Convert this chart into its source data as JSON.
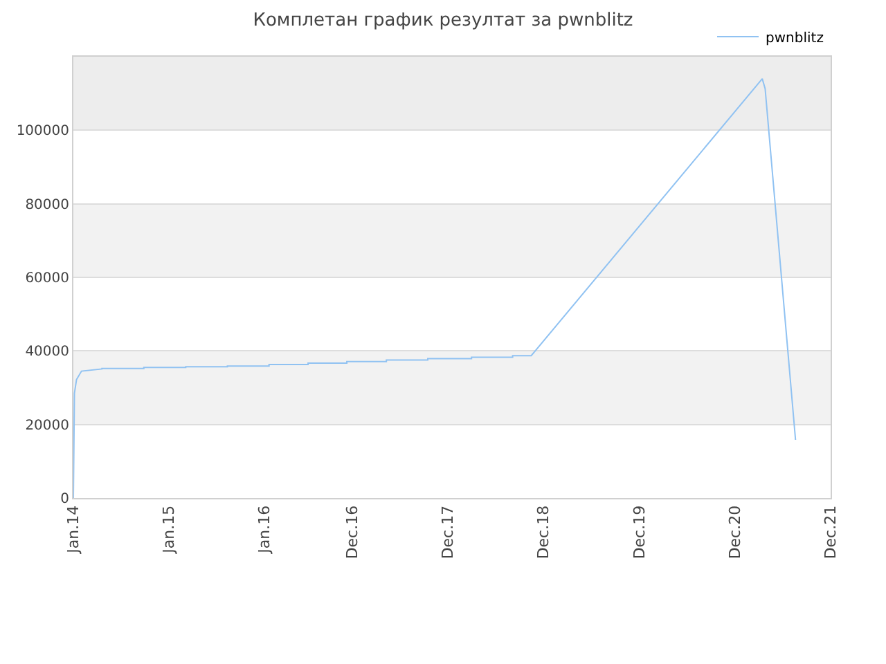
{
  "chart_data": {
    "type": "line",
    "title": "Комплетан график резултат за pwnblitz",
    "xlim": [
      "2014-01",
      "2021-12"
    ],
    "xticks": [
      {
        "value": "2014-01",
        "label": "Jan.14"
      },
      {
        "value": "2015-01",
        "label": "Jan.15"
      },
      {
        "value": "2016-01",
        "label": "Jan.16"
      },
      {
        "value": "2016-12",
        "label": "Dec.16"
      },
      {
        "value": "2017-12",
        "label": "Dec.17"
      },
      {
        "value": "2018-12",
        "label": "Dec.18"
      },
      {
        "value": "2019-12",
        "label": "Dec.19"
      },
      {
        "value": "2020-12",
        "label": "Dec.20"
      },
      {
        "value": "2021-12",
        "label": "Dec.21"
      }
    ],
    "ylim": [
      0,
      120000
    ],
    "yticks": [
      0,
      20000,
      40000,
      60000,
      80000,
      100000
    ],
    "grid": "y",
    "legend": "top right",
    "marker": "none",
    "line_style": "solid",
    "bands": [
      {
        "axis": "y",
        "from": 20000,
        "to": 40000,
        "color": "#f2f2f2"
      },
      {
        "axis": "y",
        "from": 60000,
        "to": 80000,
        "color": "#f2f2f2"
      },
      {
        "axis": "y",
        "from": 100000,
        "to": 120000,
        "color": "#ededed"
      }
    ],
    "series": [
      {
        "name": "pwnblitz",
        "color": "#90c2f2",
        "x": [
          "2014-01-01",
          "2014-01-05",
          "2014-01-13",
          "2014-02-01",
          "2014-04-20",
          "2014-04-20",
          "2014-09-27",
          "2014-09-27",
          "2015-03-06",
          "2015-03-06",
          "2015-08-12",
          "2015-08-12",
          "2016-01-18",
          "2016-01-18",
          "2016-06-15",
          "2016-06-15",
          "2016-11-10",
          "2016-11-10",
          "2017-04-10",
          "2017-04-10",
          "2017-09-15",
          "2017-09-15",
          "2018-03-01",
          "2018-03-01",
          "2018-08-05",
          "2018-08-05",
          "2018-10-15",
          "2021-03-15",
          "2021-03-26",
          "2021-07-20"
        ],
        "values": [
          0,
          28500,
          32200,
          34500,
          35100,
          35200,
          35200,
          35500,
          35500,
          35700,
          35700,
          35900,
          35900,
          36300,
          36300,
          36700,
          36700,
          37100,
          37100,
          37500,
          37500,
          37900,
          37900,
          38300,
          38300,
          38700,
          38700,
          114000,
          111300,
          15800
        ]
      }
    ]
  }
}
